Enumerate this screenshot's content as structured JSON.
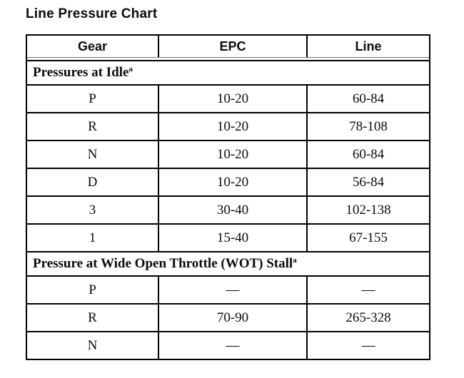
{
  "page": {
    "title": "Line Pressure Chart"
  },
  "table": {
    "columns": {
      "gear": "Gear",
      "epc": "EPC",
      "line": "Line"
    },
    "sections": [
      {
        "header": "Pressures at Idle",
        "footnote_marker": "a",
        "rows": [
          {
            "gear": "P",
            "epc": "10-20",
            "line": "60-84"
          },
          {
            "gear": "R",
            "epc": "10-20",
            "line": "78-108"
          },
          {
            "gear": "N",
            "epc": "10-20",
            "line": "60-84"
          },
          {
            "gear": "D",
            "epc": "10-20",
            "line": "56-84"
          },
          {
            "gear": "3",
            "epc": "30-40",
            "line": "102-138"
          },
          {
            "gear": "1",
            "epc": "15-40",
            "line": "67-155"
          }
        ]
      },
      {
        "header": "Pressure at Wide Open Throttle (WOT) Stall",
        "footnote_marker": "a",
        "rows": [
          {
            "gear": "P",
            "epc": "—",
            "line": "—"
          },
          {
            "gear": "R",
            "epc": "70-90",
            "line": "265-328"
          },
          {
            "gear": "N",
            "epc": "—",
            "line": "—"
          }
        ]
      }
    ]
  }
}
